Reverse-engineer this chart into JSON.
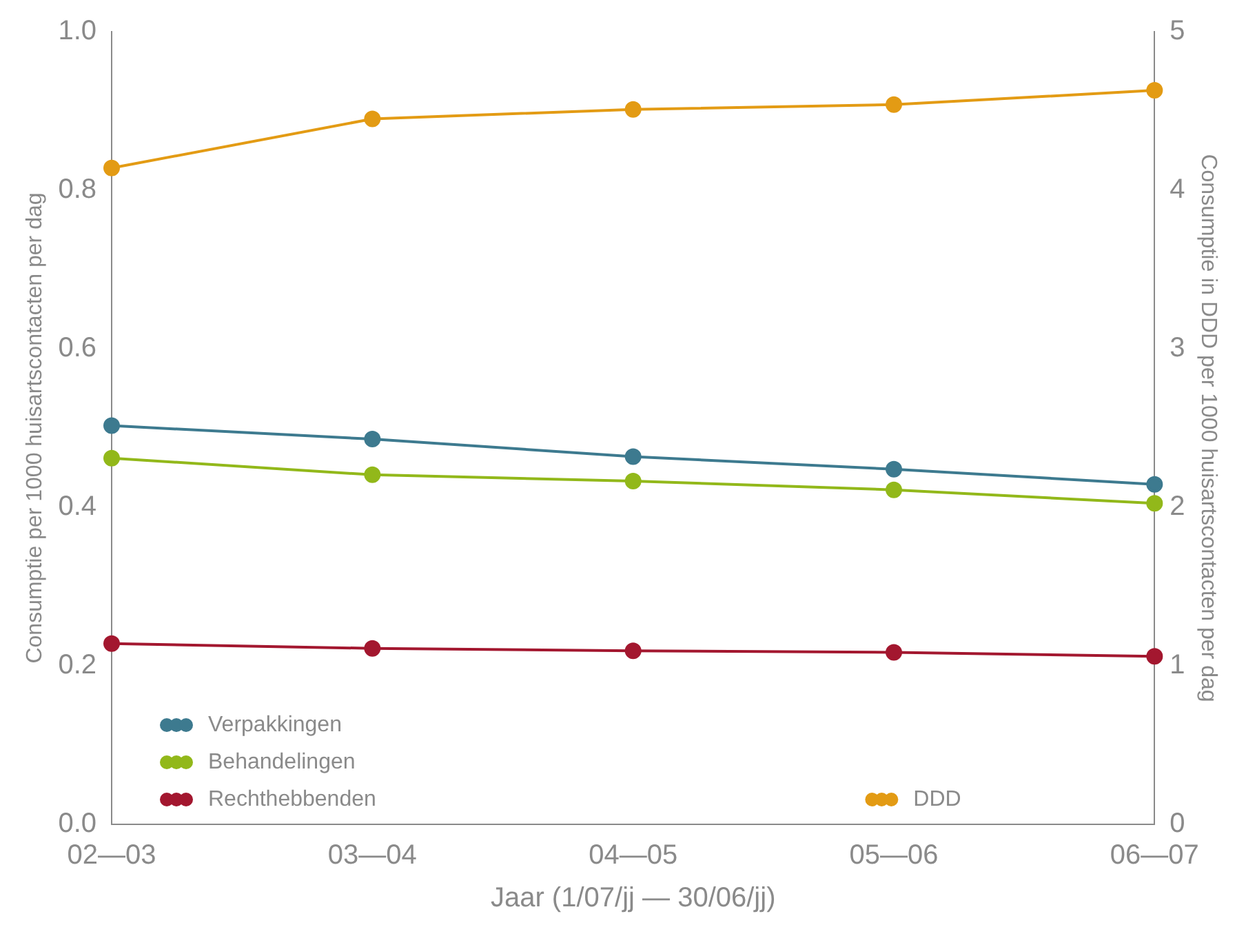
{
  "chart_data": {
    "type": "line",
    "xlabel": "Jaar (1/07/jj — 30/06/jj)",
    "ylabel": "Consumptie per 1000 huisartscontacten per dag",
    "y2label": "Consumptie in DDD per 1000 huisartscontacten per dag",
    "categories": [
      "02—03",
      "03—04",
      "04—05",
      "05—06",
      "06—07"
    ],
    "series": [
      {
        "name": "Verpakkingen",
        "color": "#3d7a8f",
        "values": [
          0.503,
          0.486,
          0.464,
          0.448,
          0.429
        ]
      },
      {
        "name": "Behandelingen",
        "color": "#92b81a",
        "values": [
          0.462,
          0.441,
          0.433,
          0.422,
          0.405
        ]
      },
      {
        "name": "Rechthebbenden",
        "color": "#a3172f",
        "values": [
          0.228,
          0.222,
          0.219,
          0.217,
          0.212
        ]
      },
      {
        "name": "DDD",
        "color": "#e39b14",
        "axis": "y2",
        "values": [
          4.14,
          4.45,
          4.51,
          4.54,
          4.63
        ]
      }
    ],
    "ylim": [
      0,
      1
    ],
    "yticks": [
      {
        "value": 0,
        "label": "0.0"
      },
      0.2,
      0.4,
      0.6,
      0.8,
      {
        "value": 1,
        "label": "1.0"
      }
    ],
    "y2lim": [
      0,
      5
    ],
    "y2ticks": [
      0,
      1,
      2,
      3,
      4,
      5
    ],
    "grid": false,
    "legend": "bottom",
    "marker": "circle",
    "line_style": "solid"
  }
}
